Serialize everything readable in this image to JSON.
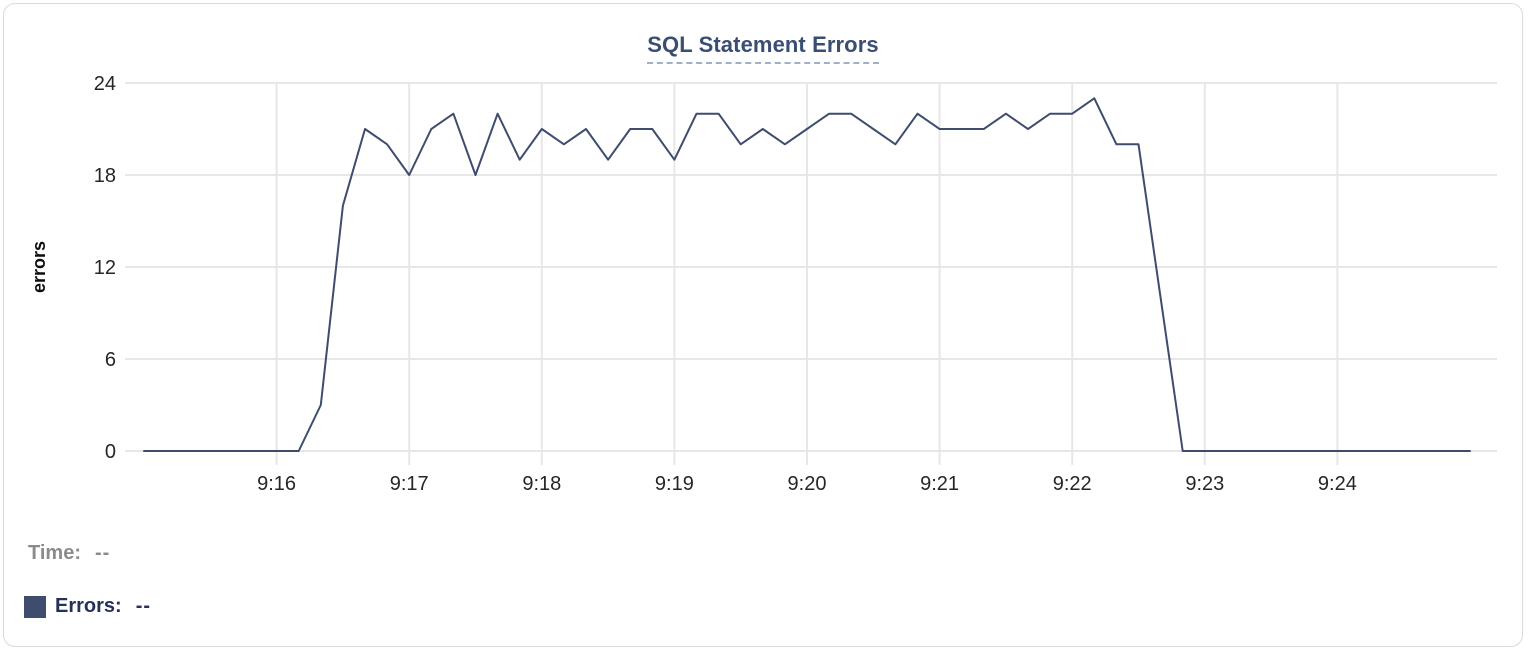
{
  "chart_data": {
    "type": "line",
    "title": "SQL Statement Errors",
    "xlabel": "",
    "ylabel": "errors",
    "ylim": [
      0,
      24
    ],
    "y_ticks": [
      0,
      6,
      12,
      18,
      24
    ],
    "x_ticks": [
      "9:16",
      "9:17",
      "9:18",
      "9:19",
      "9:20",
      "9:21",
      "9:22",
      "9:23",
      "9:24"
    ],
    "x_range": [
      "9:15:00",
      "9:25:00"
    ],
    "grid": true,
    "legend_position": "bottom-left",
    "series": [
      {
        "name": "Errors",
        "color": "#3e4c6e",
        "times": [
          "9:15:00",
          "9:15:10",
          "9:15:20",
          "9:15:30",
          "9:15:40",
          "9:15:50",
          "9:16:00",
          "9:16:10",
          "9:16:20",
          "9:16:30",
          "9:16:40",
          "9:16:50",
          "9:17:00",
          "9:17:10",
          "9:17:20",
          "9:17:30",
          "9:17:40",
          "9:17:50",
          "9:18:00",
          "9:18:10",
          "9:18:20",
          "9:18:30",
          "9:18:40",
          "9:18:50",
          "9:19:00",
          "9:19:10",
          "9:19:20",
          "9:19:30",
          "9:19:40",
          "9:19:50",
          "9:20:00",
          "9:20:10",
          "9:20:20",
          "9:20:30",
          "9:20:40",
          "9:20:50",
          "9:21:00",
          "9:21:10",
          "9:21:20",
          "9:21:30",
          "9:21:40",
          "9:21:50",
          "9:22:00",
          "9:22:10",
          "9:22:20",
          "9:22:30",
          "9:22:40",
          "9:22:50",
          "9:23:00",
          "9:23:10",
          "9:23:20",
          "9:23:30",
          "9:23:40",
          "9:23:50",
          "9:24:00",
          "9:24:10",
          "9:24:20",
          "9:24:30",
          "9:24:40",
          "9:24:50",
          "9:25:00"
        ],
        "values": [
          0,
          0,
          0,
          0,
          0,
          0,
          0,
          0,
          3,
          16,
          21,
          20,
          18,
          21,
          22,
          18,
          22,
          19,
          21,
          20,
          21,
          19,
          21,
          21,
          19,
          22,
          22,
          20,
          21,
          20,
          21,
          22,
          22,
          21,
          20,
          22,
          21,
          21,
          21,
          22,
          21,
          22,
          22,
          23,
          20,
          20,
          10,
          0,
          0,
          0,
          0,
          0,
          0,
          0,
          0,
          0,
          0,
          0,
          0,
          0,
          0
        ]
      }
    ]
  },
  "legend": {
    "time_label": "Time:",
    "time_value": "--",
    "errors_label": "Errors:",
    "errors_value": "--",
    "swatch_color": "#3e4c6e"
  },
  "colors": {
    "line": "#3e4c6e",
    "title": "#3a4e73",
    "title_underline": "#9fb0c8",
    "grid": "#e7e7e7",
    "tick_text": "#262626",
    "legend_time": "#8b8b8b",
    "legend_errors": "#25315a",
    "card_border": "#d8dade"
  }
}
